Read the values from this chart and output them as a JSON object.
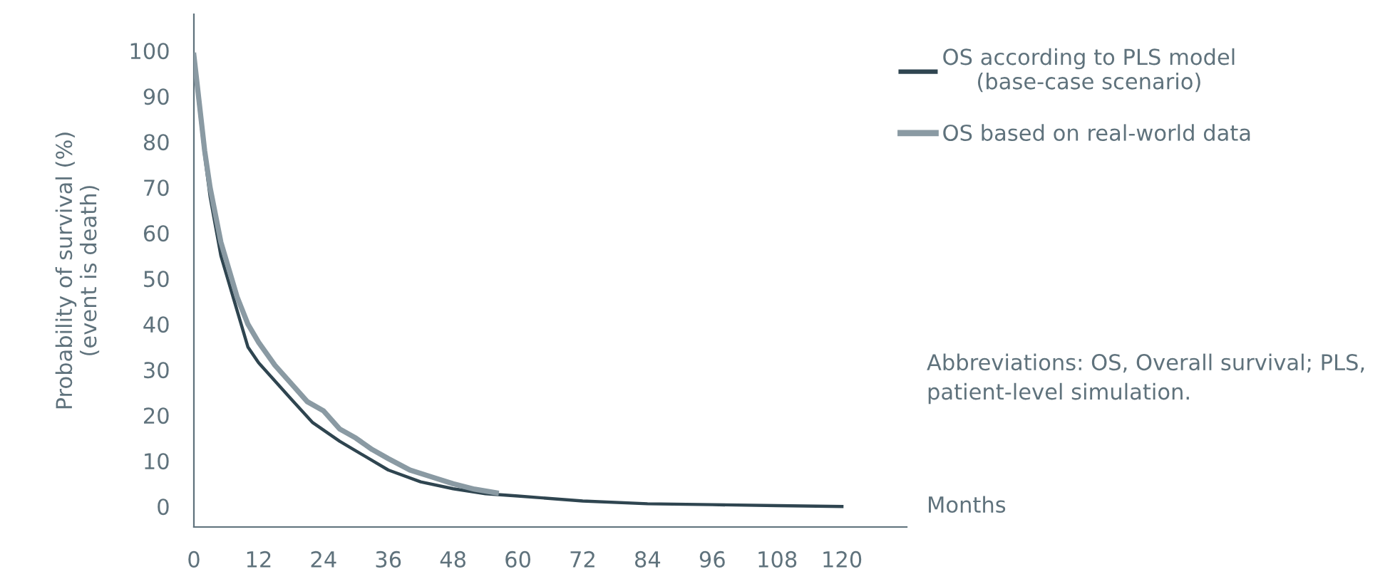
{
  "chart_data": {
    "type": "line",
    "xlabel": "Months",
    "ylabel": "Probability of survival (%)\n(event is death)",
    "xlim": [
      0,
      132
    ],
    "ylim": [
      -4.5,
      108
    ],
    "xticks": [
      0,
      12,
      24,
      36,
      48,
      60,
      72,
      84,
      96,
      108,
      120
    ],
    "yticks": [
      0,
      10,
      20,
      30,
      40,
      50,
      60,
      70,
      80,
      90,
      100
    ],
    "grid": false,
    "legend": "top right",
    "line_style": "solid",
    "marker": "none",
    "annotations": [
      "Abbreviations: OS, Overall survival; PLS,\npatient-level simulation."
    ],
    "series": [
      {
        "name": "OS according to PLS model\n(base-case scenario)",
        "color": "#2f4550",
        "x": [
          0,
          2,
          3,
          5,
          8,
          10,
          12,
          18,
          22,
          27,
          30,
          36,
          42,
          48,
          54,
          60,
          72,
          84,
          96,
          108,
          120
        ],
        "values": [
          98,
          77,
          68,
          55,
          43,
          35,
          31.5,
          23.6,
          18.4,
          14.3,
          12.2,
          8,
          5.4,
          3.9,
          2.8,
          2.3,
          1.2,
          0.6,
          0.4,
          0.2,
          0
        ]
      },
      {
        "name": "OS based on real-world data",
        "color": "#8a9aa3",
        "x": [
          0,
          2,
          3,
          5,
          8,
          10,
          12,
          15,
          18,
          21,
          24,
          27,
          30,
          33,
          36,
          40,
          44,
          48,
          52,
          56
        ],
        "values": [
          99,
          78,
          70,
          58,
          46,
          40,
          36,
          31,
          27,
          23,
          21,
          17,
          15,
          12.5,
          10.5,
          8,
          6.5,
          5,
          3.8,
          3
        ]
      }
    ]
  }
}
